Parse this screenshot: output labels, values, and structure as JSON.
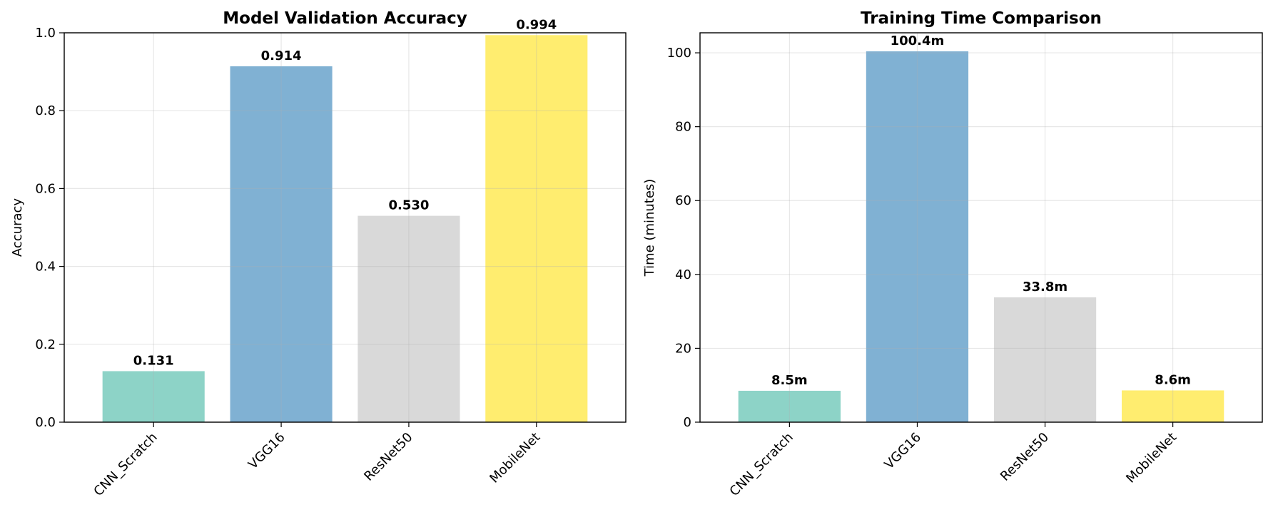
{
  "chart_data": [
    {
      "type": "bar",
      "title": "Model Validation Accuracy",
      "xlabel": "",
      "ylabel": "Accuracy",
      "categories": [
        "CNN_Scratch",
        "VGG16",
        "ResNet50",
        "MobileNet"
      ],
      "values": [
        0.131,
        0.914,
        0.53,
        0.994
      ],
      "value_labels": [
        "0.131",
        "0.914",
        "0.530",
        "0.994"
      ],
      "colors": [
        "#8dd3c7",
        "#80b1d3",
        "#d9d9d9",
        "#ffed6f"
      ],
      "ylim": [
        0,
        1.0
      ],
      "yticks": [
        0.0,
        0.2,
        0.4,
        0.6,
        0.8,
        1.0
      ],
      "ytick_labels": [
        "0.0",
        "0.2",
        "0.4",
        "0.6",
        "0.8",
        "1.0"
      ],
      "grid": true
    },
    {
      "type": "bar",
      "title": "Training Time Comparison",
      "xlabel": "",
      "ylabel": "Time (minutes)",
      "categories": [
        "CNN_Scratch",
        "VGG16",
        "ResNet50",
        "MobileNet"
      ],
      "values": [
        8.5,
        100.4,
        33.8,
        8.6
      ],
      "value_labels": [
        "8.5m",
        "100.4m",
        "33.8m",
        "8.6m"
      ],
      "colors": [
        "#8dd3c7",
        "#80b1d3",
        "#d9d9d9",
        "#ffed6f"
      ],
      "ylim": [
        0,
        105.42
      ],
      "yticks": [
        0,
        20,
        40,
        60,
        80,
        100
      ],
      "ytick_labels": [
        "0",
        "20",
        "40",
        "60",
        "80",
        "100"
      ],
      "grid": true
    }
  ]
}
